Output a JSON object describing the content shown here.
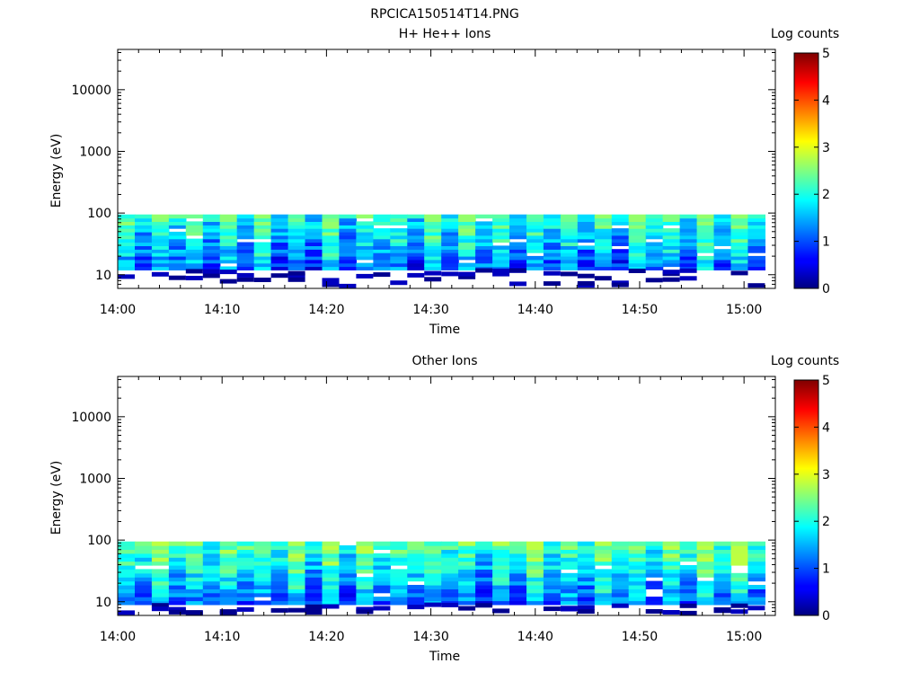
{
  "figure": {
    "title": "RPCICA150514T14.PNG"
  },
  "chart_data": [
    {
      "type": "heatmap",
      "title": "H+ He++ Ions",
      "xlabel": "Time",
      "ylabel": "Energy (eV)",
      "x_ticks": [
        "14:00",
        "14:10",
        "14:20",
        "14:30",
        "14:40",
        "14:50",
        "15:00"
      ],
      "x_range": [
        "14:00",
        "15:03"
      ],
      "y_scale": "log",
      "y_ticks": [
        10,
        100,
        1000,
        10000
      ],
      "y_range": [
        6,
        45000
      ],
      "energy_band_eV": [
        12,
        95
      ],
      "colorbar": {
        "label": "Log counts",
        "ticks": [
          0,
          1,
          2,
          3,
          4,
          5
        ],
        "range": [
          0,
          5
        ],
        "colormap": "jet"
      },
      "typical_log_counts": {
        "min": 0.3,
        "max": 2.6
      },
      "seed": 7
    },
    {
      "type": "heatmap",
      "title": "Other Ions",
      "xlabel": "Time",
      "ylabel": "Energy (eV)",
      "x_ticks": [
        "14:00",
        "14:10",
        "14:20",
        "14:30",
        "14:40",
        "14:50",
        "15:00"
      ],
      "x_range": [
        "14:00",
        "15:03"
      ],
      "y_scale": "log",
      "y_ticks": [
        10,
        100,
        1000,
        10000
      ],
      "y_range": [
        6,
        45000
      ],
      "energy_band_eV": [
        9,
        95
      ],
      "colorbar": {
        "label": "Log counts",
        "ticks": [
          0,
          1,
          2,
          3,
          4,
          5
        ],
        "range": [
          0,
          5
        ],
        "colormap": "jet"
      },
      "typical_log_counts": {
        "min": 0.2,
        "max": 2.8
      },
      "seed": 13
    }
  ]
}
